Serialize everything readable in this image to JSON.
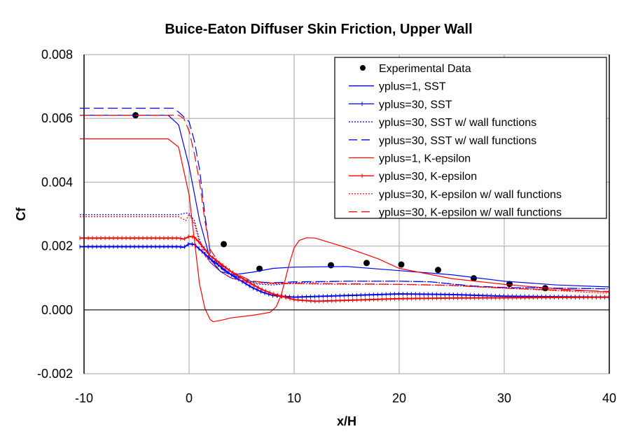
{
  "chart_data": {
    "type": "line",
    "title": "Buice-Eaton Diffuser Skin Friction, Upper Wall",
    "xlabel": "x/H",
    "ylabel": "Cf",
    "xlim": [
      -10,
      40
    ],
    "ylim": [
      -0.002,
      0.008
    ],
    "xticks": [
      "-10",
      "0",
      "10",
      "20",
      "30",
      "40"
    ],
    "yticks": [
      "-0.002",
      "0.000",
      "0.002",
      "0.004",
      "0.006",
      "0.008"
    ],
    "grid": true,
    "legend_position": "top-right",
    "series": [
      {
        "name": "Experimental Data",
        "style": "markers",
        "color": "#000000",
        "x": [
          -5.1,
          3.3,
          6.7,
          13.5,
          16.9,
          20.2,
          23.7,
          27.1,
          30.5,
          33.9
        ],
        "y": [
          0.0061,
          0.00206,
          0.00129,
          0.0014,
          0.00147,
          0.00142,
          0.00125,
          0.00099,
          0.00081,
          0.00068
        ]
      },
      {
        "name": "yplus=1, SST",
        "style": "solid",
        "color": "#0000ff",
        "x": [
          -10.4,
          -2,
          -1,
          0,
          1,
          2,
          3,
          4.2,
          6,
          8,
          10,
          15,
          20,
          25,
          30,
          35,
          40
        ],
        "y": [
          0.0061,
          0.0061,
          0.0058,
          0.0045,
          0.0028,
          0.0016,
          0.0012,
          0.0011,
          0.00118,
          0.0013,
          0.00134,
          0.00136,
          0.00123,
          0.0011,
          0.0009,
          0.00078,
          0.00072
        ]
      },
      {
        "name": "yplus=30, SST",
        "style": "solid-plus",
        "color": "#0000ff",
        "x": [
          -10.4,
          -1,
          -0.5,
          0,
          0.5,
          1,
          2,
          3,
          4,
          5,
          6,
          7,
          8,
          10,
          15,
          20,
          25,
          30,
          35,
          40
        ],
        "y": [
          0.00198,
          0.00198,
          0.00196,
          0.00207,
          0.00205,
          0.0019,
          0.0016,
          0.00135,
          0.0011,
          0.0009,
          0.0007,
          0.00055,
          0.00045,
          0.0004,
          0.00045,
          0.0005,
          0.00048,
          0.00043,
          0.00041,
          0.0004
        ]
      },
      {
        "name": "yplus=30, SST w/ wall functions",
        "style": "dotted",
        "color": "#0000ff",
        "x": [
          -10.4,
          -1,
          -0.3,
          0,
          0.5,
          1,
          1.5,
          2,
          3,
          4,
          6,
          8,
          10,
          15,
          20,
          23,
          27,
          30,
          35,
          40
        ],
        "y": [
          0.00298,
          0.00298,
          0.00304,
          0.00302,
          0.0028,
          0.0022,
          0.0018,
          0.0015,
          0.0012,
          0.001,
          0.00082,
          0.00078,
          0.00085,
          0.0009,
          0.0009,
          0.00088,
          0.00074,
          0.0007,
          0.00068,
          0.00066
        ]
      },
      {
        "name": "yplus=30, SST w/ wall functions",
        "style": "dashed",
        "color": "#0000ff",
        "x": [
          -10.4,
          -1.5,
          -1,
          0,
          0.5,
          1,
          1.5,
          2,
          3,
          4,
          6,
          8,
          10,
          15,
          20,
          23,
          27,
          30,
          35,
          40
        ],
        "y": [
          0.00632,
          0.00632,
          0.0062,
          0.0059,
          0.0053,
          0.0044,
          0.003,
          0.0018,
          0.0013,
          0.0011,
          0.00088,
          0.00085,
          0.00088,
          0.0009,
          0.0009,
          0.00088,
          0.00075,
          0.0007,
          0.00068,
          0.00066
        ]
      },
      {
        "name": "yplus=1, K-epsilon",
        "style": "solid",
        "color": "#ff0000",
        "x": [
          -10.4,
          -2,
          -1,
          0,
          0.5,
          1,
          1.5,
          2,
          2.3,
          3,
          4,
          6,
          7.7,
          8.3,
          8.8,
          9.5,
          10,
          10.5,
          11.2,
          12,
          15,
          18,
          20,
          25,
          30,
          35,
          40
        ],
        "y": [
          0.00536,
          0.00536,
          0.0051,
          0.0036,
          0.0022,
          0.0008,
          5e-05,
          -0.0003,
          -0.00037,
          -0.00033,
          -0.00025,
          -0.00017,
          -8e-05,
          0.0001,
          0.0005,
          0.0014,
          0.00195,
          0.00218,
          0.00226,
          0.00225,
          0.00195,
          0.0016,
          0.0013,
          0.00098,
          0.0008,
          0.00066,
          0.00056
        ]
      },
      {
        "name": "yplus=30, K-epsilon",
        "style": "solid-plus",
        "color": "#ff0000",
        "x": [
          -10.4,
          -1,
          -0.5,
          0,
          0.5,
          1,
          2,
          3,
          4,
          5,
          6,
          7,
          8,
          10,
          12,
          15,
          20,
          25,
          30,
          35,
          40
        ],
        "y": [
          0.00225,
          0.00225,
          0.00222,
          0.0023,
          0.00228,
          0.0021,
          0.0017,
          0.00145,
          0.0012,
          0.001,
          0.0008,
          0.00063,
          0.0005,
          0.00032,
          0.00027,
          0.0003,
          0.00035,
          0.00037,
          0.00038,
          0.00039,
          0.0004
        ]
      },
      {
        "name": "yplus=30, K-epsilon w/ wall functions",
        "style": "dotted",
        "color": "#ff0000",
        "x": [
          -10.4,
          -1,
          -0.3,
          0,
          0.5,
          1,
          1.5,
          2,
          3,
          4,
          6,
          8,
          10,
          15,
          20,
          25,
          30,
          35,
          40
        ],
        "y": [
          0.00292,
          0.00292,
          0.0028,
          0.003,
          0.0027,
          0.0021,
          0.0017,
          0.0015,
          0.0012,
          0.001,
          0.00085,
          0.00082,
          0.00082,
          0.0008,
          0.0008,
          0.00076,
          0.00068,
          0.0006,
          0.00052
        ]
      },
      {
        "name": "yplus=30, K-epsilon w/ wall functions",
        "style": "dashed",
        "color": "#ff0000",
        "x": [
          -10.4,
          -1,
          -0.5,
          0,
          0.5,
          1,
          1.5,
          2,
          3,
          4,
          6,
          8,
          10,
          15,
          20,
          25,
          30,
          35,
          40
        ],
        "y": [
          0.0061,
          0.0061,
          0.006,
          0.0056,
          0.0049,
          0.004,
          0.0028,
          0.0019,
          0.0014,
          0.0012,
          0.0009,
          0.00084,
          0.00083,
          0.00082,
          0.0008,
          0.00077,
          0.00068,
          0.00062,
          0.00058
        ]
      }
    ]
  }
}
